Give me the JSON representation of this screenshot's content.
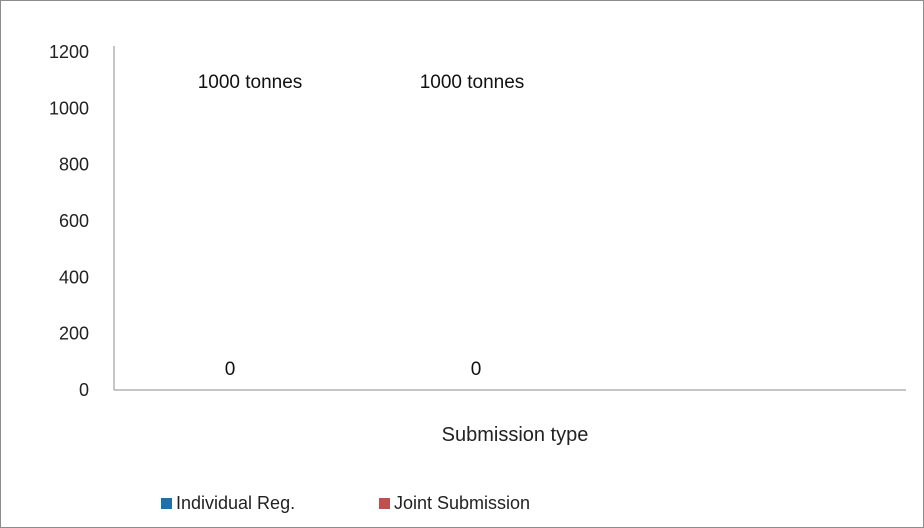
{
  "chart_data": {
    "type": "bar",
    "title": "",
    "xlabel": "Submission type",
    "ylabel": "",
    "categories": [
      "",
      ""
    ],
    "ylim": [
      0,
      1200
    ],
    "yticks": [
      0,
      200,
      400,
      600,
      800,
      1000,
      1200
    ],
    "grid": false,
    "legend_position": "bottom",
    "series": [
      {
        "name": "Individual Reg.",
        "color": "#1f6fa8",
        "values": [
          0,
          0
        ],
        "data_labels": [
          "0",
          "0"
        ]
      },
      {
        "name": "Joint Submission",
        "color": "#c0504d",
        "values": [
          1000,
          1000
        ],
        "data_labels": [
          "1000 tonnes",
          "1000 tonnes"
        ]
      }
    ]
  }
}
